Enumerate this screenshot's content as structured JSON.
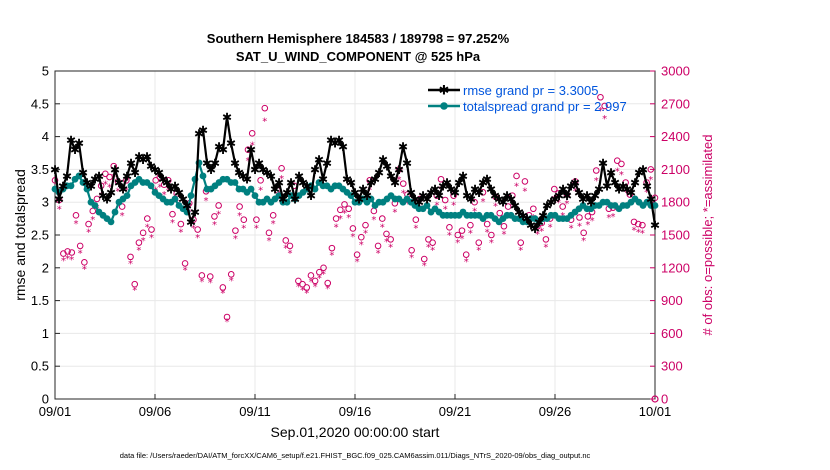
{
  "chart_data": {
    "type": "line",
    "title": "Southern Hemisphere 184583 / 189798 = 97.252%",
    "subtitle": "SAT_U_WIND_COMPONENT @ 525 hPa",
    "xlabel": "Sep.01,2020 00:00:00 start",
    "ylabel": "rmse and totalspread",
    "ylabel_right": "# of obs: o=possible; *=assimilated",
    "footnote": "data file: /Users/raeder/DAI/ATM_forcXX/CAM6_setup/f.e21.FHIST_BGC.f09_025.CAM6assim.011/Diags_NTrS_2020-09/obs_diag_output.nc",
    "xlim": [
      0,
      30
    ],
    "ylim": [
      0,
      5
    ],
    "ylim_right": [
      0,
      3000
    ],
    "x_ticks": [
      0,
      5,
      10,
      15,
      20,
      25,
      30
    ],
    "x_tick_labels": [
      "09/01",
      "09/06",
      "09/11",
      "09/16",
      "09/21",
      "09/26",
      "10/01"
    ],
    "y_ticks": [
      0,
      0.5,
      1,
      1.5,
      2,
      2.5,
      3,
      3.5,
      4,
      4.5,
      5
    ],
    "y_tick_labels": [
      "0",
      "0.5",
      "1",
      "1.5",
      "2",
      "2.5",
      "3",
      "3.5",
      "4",
      "4.5",
      "5"
    ],
    "y_ticks_right": [
      0,
      300,
      600,
      900,
      1200,
      1500,
      1800,
      2100,
      2400,
      2700,
      3000
    ],
    "y_tick_labels_right": [
      "0",
      "300",
      "600",
      "900",
      "1200",
      "1500",
      "1800",
      "2100",
      "2400",
      "2700",
      "3000"
    ],
    "grid": true,
    "legend_position": "top-right",
    "series": [
      {
        "name": "rmse grand pr = 3.3005",
        "color": "#000000",
        "marker": "star",
        "values": [
          3.5,
          3.05,
          3.25,
          3.4,
          3.95,
          3.8,
          3.9,
          3.45,
          3.3,
          3.25,
          3.35,
          3.4,
          3.1,
          3.05,
          3.15,
          3.5,
          3.3,
          3.2,
          3.4,
          3.6,
          3.45,
          3.7,
          3.65,
          3.7,
          3.55,
          3.5,
          3.45,
          3.35,
          3.3,
          3.2,
          3.25,
          3.15,
          3.05,
          2.95,
          2.7,
          2.85,
          4.05,
          4.1,
          3.6,
          3.5,
          3.6,
          3.85,
          3.8,
          4.3,
          3.9,
          3.6,
          3.45,
          3.4,
          3.35,
          3.8,
          3.5,
          3.6,
          3.5,
          3.45,
          3.4,
          3.2,
          3.3,
          3.05,
          3.15,
          3.3,
          3.05,
          3.4,
          3.3,
          3.25,
          3.1,
          3.5,
          3.65,
          3.35,
          3.6,
          3.95,
          3.9,
          3.95,
          3.85,
          3.35,
          3.3,
          3.15,
          3.05,
          3.2,
          3.1,
          3.3,
          3.35,
          3.45,
          3.65,
          3.55,
          3.4,
          3.3,
          3.5,
          3.85,
          3.6,
          3.15,
          3.05,
          3.0,
          3.1,
          3.05,
          3.15,
          3.2,
          3.1,
          3.25,
          3.3,
          3.2,
          3.15,
          3.3,
          3.4,
          3.1,
          3.05,
          3.2,
          3.15,
          3.3,
          3.35,
          3.2,
          3.1,
          3.05,
          3.0,
          3.1,
          3.05,
          2.95,
          2.85,
          2.8,
          2.75,
          2.65,
          2.6,
          2.7,
          2.8,
          2.95,
          3.0,
          3.05,
          3.1,
          3.2,
          3.1,
          3.25,
          3.3,
          3.15,
          3.05,
          3.1,
          3.0,
          3.1,
          3.2,
          3.6,
          3.25,
          3.45,
          3.3,
          3.2,
          3.25,
          3.2,
          3.15,
          3.3,
          3.45,
          3.5,
          3.25,
          3.05,
          2.65
        ]
      },
      {
        "name": "totalspread grand pr = 2.997",
        "color": "#008080",
        "marker": "circle",
        "values": [
          3.2,
          3.15,
          3.2,
          3.25,
          3.25,
          3.35,
          3.4,
          3.3,
          3.2,
          3.0,
          2.95,
          2.85,
          2.8,
          2.75,
          2.7,
          2.85,
          3.0,
          3.05,
          3.1,
          3.25,
          3.3,
          3.35,
          3.3,
          3.3,
          3.25,
          3.15,
          3.1,
          3.05,
          3.0,
          3.0,
          3.05,
          2.95,
          2.9,
          2.85,
          3.1,
          3.35,
          3.6,
          3.4,
          3.2,
          3.2,
          3.25,
          3.3,
          3.35,
          3.35,
          3.3,
          3.3,
          3.2,
          3.2,
          3.15,
          3.2,
          3.1,
          3.0,
          3.0,
          3.05,
          3.0,
          3.05,
          3.1,
          3.0,
          3.0,
          3.1,
          3.05,
          3.1,
          3.15,
          3.2,
          3.25,
          3.2,
          3.3,
          3.25,
          3.25,
          3.2,
          3.25,
          3.25,
          3.2,
          3.15,
          3.1,
          3.0,
          3.0,
          3.05,
          3.0,
          3.05,
          2.95,
          3.0,
          3.0,
          3.05,
          3.1,
          3.05,
          3.05,
          3.0,
          3.05,
          3.0,
          2.95,
          2.9,
          2.9,
          2.95,
          2.85,
          2.9,
          2.85,
          2.8,
          2.8,
          2.8,
          2.8,
          2.8,
          2.85,
          2.8,
          2.8,
          2.8,
          2.8,
          2.75,
          2.8,
          2.8,
          2.75,
          2.7,
          2.75,
          2.8,
          2.8,
          2.75,
          2.75,
          2.7,
          2.7,
          2.75,
          2.75,
          2.7,
          2.75,
          2.75,
          2.8,
          2.8,
          2.75,
          2.75,
          2.75,
          2.8,
          2.85,
          2.9,
          2.95,
          2.9,
          2.9,
          2.95,
          2.95,
          3.0,
          3.0,
          2.95,
          2.95,
          2.9,
          2.95,
          2.95,
          3.0,
          3.05,
          3.0,
          2.95,
          3.0,
          2.95,
          2.95
        ]
      }
    ],
    "obs_possible": [
      2000,
      1820,
      1330,
      1350,
      1340,
      1680,
      1400,
      1250,
      1600,
      1720,
      1830,
      1950,
      2060,
      2030,
      2130,
      1990,
      1760,
      2000,
      1300,
      1050,
      1430,
      1520,
      1650,
      1550,
      2000,
      2030,
      1960,
      2000,
      1690,
      1880,
      1600,
      1240,
      1790,
      1640,
      1550,
      1130,
      1900,
      1120,
      1670,
      1770,
      1020,
      750,
      1140,
      1540,
      1760,
      1640,
      2280,
      2430,
      1640,
      2000,
      2660,
      1520,
      1680,
      1910,
      2110,
      1450,
      1400,
      1950,
      1080,
      1050,
      1020,
      1130,
      1080,
      1160,
      1200,
      1060,
      1380,
      1650,
      1730,
      1780,
      1740,
      1560,
      1320,
      1480,
      1590,
      2000,
      1720,
      1400,
      1650,
      1510,
      1460,
      1790,
      2100,
      1970,
      1870,
      1360,
      1640,
      1830,
      1280,
      1460,
      1430,
      1860,
      2010,
      1820,
      1570,
      1860,
      1500,
      1540,
      1320,
      1590,
      1800,
      1430,
      1890,
      1600,
      1500,
      1850,
      1700,
      1580,
      1760,
      1860,
      2040,
      1430,
      1990,
      1680,
      1740,
      1580,
      1610,
      1460,
      1650,
      1920,
      1880,
      1760,
      1870,
      1640,
      1990,
      1660,
      1520,
      1670,
      1710,
      2090,
      2760,
      2680,
      1740,
      1750,
      2180,
      2150,
      1980,
      1870,
      1620,
      1600,
      1590,
      1980,
      2100,
      1840
    ]
  },
  "legend": {
    "rmse_label": "rmse grand pr = 3.3005",
    "spread_label": "totalspread grand pr = 2.997"
  }
}
